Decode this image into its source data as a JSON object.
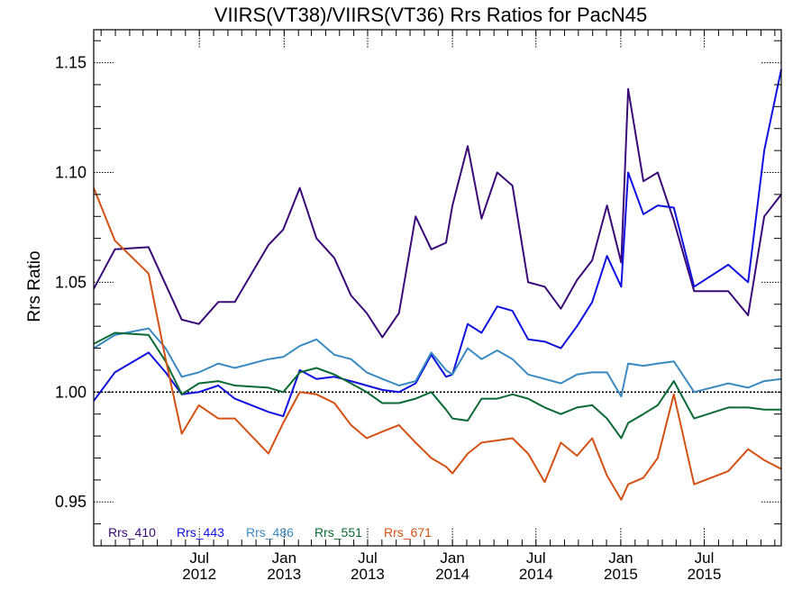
{
  "chart_data": {
    "type": "line",
    "title": "VIIRS(VT38)/VIIRS(VT36)  Rrs Ratios for PacN45",
    "ylabel": "Rrs Ratio",
    "xlabel": "",
    "ylim": [
      0.93,
      1.165
    ],
    "xlim": [
      "2011-11-15",
      "2015-12-15"
    ],
    "y_ticks": [
      0.95,
      1.0,
      1.05,
      1.1,
      1.15
    ],
    "y_tick_labels": [
      "0.95",
      "1.00",
      "1.05",
      "1.10",
      "1.15"
    ],
    "x_ticks": [
      {
        "date": "2012-07-01",
        "label_top": "Jul",
        "label_bottom": "2012"
      },
      {
        "date": "2013-01-01",
        "label_top": "Jan",
        "label_bottom": "2013"
      },
      {
        "date": "2013-07-01",
        "label_top": "Jul",
        "label_bottom": "2013"
      },
      {
        "date": "2014-01-01",
        "label_top": "Jan",
        "label_bottom": "2014"
      },
      {
        "date": "2014-07-01",
        "label_top": "Jul",
        "label_bottom": "2014"
      },
      {
        "date": "2015-01-01",
        "label_top": "Jan",
        "label_bottom": "2015"
      },
      {
        "date": "2015-07-01",
        "label_top": "Jul",
        "label_bottom": "2015"
      }
    ],
    "reference_line": 1.0,
    "legend_position": "bottom-left",
    "series": [
      {
        "name": "Rrs_410",
        "color": "#3a0a78",
        "points": [
          [
            "2011-11-15",
            1.047
          ],
          [
            "2011-12-31",
            1.065
          ],
          [
            "2012-03-13",
            1.066
          ],
          [
            "2012-05-24",
            1.033
          ],
          [
            "2012-06-30",
            1.031
          ],
          [
            "2012-08-11",
            1.041
          ],
          [
            "2012-09-16",
            1.041
          ],
          [
            "2012-11-28",
            1.067
          ],
          [
            "2012-12-30",
            1.074
          ],
          [
            "2013-02-04",
            1.093
          ],
          [
            "2013-03-12",
            1.07
          ],
          [
            "2013-04-20",
            1.061
          ],
          [
            "2013-05-26",
            1.044
          ],
          [
            "2013-06-29",
            1.036
          ],
          [
            "2013-08-02",
            1.025
          ],
          [
            "2013-09-07",
            1.036
          ],
          [
            "2013-10-13",
            1.08
          ],
          [
            "2013-11-16",
            1.065
          ],
          [
            "2013-12-18",
            1.068
          ],
          [
            "2014-01-01",
            1.085
          ],
          [
            "2014-02-03",
            1.112
          ],
          [
            "2014-03-05",
            1.079
          ],
          [
            "2014-04-08",
            1.1
          ],
          [
            "2014-05-11",
            1.094
          ],
          [
            "2014-06-14",
            1.05
          ],
          [
            "2014-07-20",
            1.048
          ],
          [
            "2014-08-24",
            1.038
          ],
          [
            "2014-09-28",
            1.051
          ],
          [
            "2014-10-31",
            1.06
          ],
          [
            "2014-12-02",
            1.085
          ],
          [
            "2015-01-02",
            1.059
          ],
          [
            "2015-01-17",
            1.138
          ],
          [
            "2015-02-19",
            1.096
          ],
          [
            "2015-03-22",
            1.1
          ],
          [
            "2015-04-26",
            1.078
          ],
          [
            "2015-06-09",
            1.046
          ],
          [
            "2015-08-22",
            1.046
          ],
          [
            "2015-10-04",
            1.035
          ],
          [
            "2015-11-08",
            1.08
          ],
          [
            "2015-12-15",
            1.09
          ]
        ]
      },
      {
        "name": "Rrs_443",
        "color": "#1010e0",
        "points": [
          [
            "2011-11-15",
            0.996
          ],
          [
            "2011-12-31",
            1.009
          ],
          [
            "2012-03-13",
            1.018
          ],
          [
            "2012-04-19",
            1.009
          ],
          [
            "2012-05-24",
            0.999
          ],
          [
            "2012-06-30",
            1.0
          ],
          [
            "2012-08-11",
            1.003
          ],
          [
            "2012-09-16",
            0.997
          ],
          [
            "2012-11-28",
            0.991
          ],
          [
            "2012-12-30",
            0.989
          ],
          [
            "2013-02-04",
            1.01
          ],
          [
            "2013-03-12",
            1.006
          ],
          [
            "2013-04-20",
            1.007
          ],
          [
            "2013-05-26",
            1.005
          ],
          [
            "2013-06-29",
            1.003
          ],
          [
            "2013-08-02",
            1.001
          ],
          [
            "2013-09-07",
            1.0
          ],
          [
            "2013-10-13",
            1.004
          ],
          [
            "2013-11-16",
            1.017
          ],
          [
            "2013-12-18",
            1.007
          ],
          [
            "2014-01-01",
            1.008
          ],
          [
            "2014-02-03",
            1.031
          ],
          [
            "2014-03-05",
            1.027
          ],
          [
            "2014-04-08",
            1.039
          ],
          [
            "2014-05-11",
            1.037
          ],
          [
            "2014-06-14",
            1.024
          ],
          [
            "2014-07-20",
            1.023
          ],
          [
            "2014-08-24",
            1.02
          ],
          [
            "2014-09-28",
            1.03
          ],
          [
            "2014-10-31",
            1.041
          ],
          [
            "2014-12-02",
            1.062
          ],
          [
            "2015-01-02",
            1.048
          ],
          [
            "2015-01-17",
            1.1
          ],
          [
            "2015-02-19",
            1.081
          ],
          [
            "2015-03-22",
            1.085
          ],
          [
            "2015-04-26",
            1.084
          ],
          [
            "2015-06-09",
            1.048
          ],
          [
            "2015-08-22",
            1.058
          ],
          [
            "2015-10-04",
            1.05
          ],
          [
            "2015-11-08",
            1.11
          ],
          [
            "2015-12-15",
            1.147
          ]
        ]
      },
      {
        "name": "Rrs_486",
        "color": "#3a8ac2",
        "points": [
          [
            "2011-11-15",
            1.02
          ],
          [
            "2011-12-31",
            1.026
          ],
          [
            "2012-03-13",
            1.029
          ],
          [
            "2012-04-19",
            1.02
          ],
          [
            "2012-05-24",
            1.007
          ],
          [
            "2012-06-30",
            1.009
          ],
          [
            "2012-08-11",
            1.013
          ],
          [
            "2012-09-16",
            1.011
          ],
          [
            "2012-11-28",
            1.015
          ],
          [
            "2012-12-30",
            1.016
          ],
          [
            "2013-02-04",
            1.021
          ],
          [
            "2013-03-12",
            1.024
          ],
          [
            "2013-04-20",
            1.017
          ],
          [
            "2013-05-26",
            1.015
          ],
          [
            "2013-06-29",
            1.009
          ],
          [
            "2013-08-02",
            1.006
          ],
          [
            "2013-09-07",
            1.003
          ],
          [
            "2013-10-13",
            1.005
          ],
          [
            "2013-11-16",
            1.018
          ],
          [
            "2013-12-18",
            1.01
          ],
          [
            "2014-01-01",
            1.008
          ],
          [
            "2014-02-03",
            1.02
          ],
          [
            "2014-03-05",
            1.015
          ],
          [
            "2014-04-08",
            1.019
          ],
          [
            "2014-05-11",
            1.015
          ],
          [
            "2014-06-14",
            1.008
          ],
          [
            "2014-07-20",
            1.006
          ],
          [
            "2014-08-24",
            1.004
          ],
          [
            "2014-09-28",
            1.008
          ],
          [
            "2014-10-31",
            1.009
          ],
          [
            "2014-12-02",
            1.009
          ],
          [
            "2015-01-02",
            0.998
          ],
          [
            "2015-01-17",
            1.013
          ],
          [
            "2015-02-19",
            1.012
          ],
          [
            "2015-03-22",
            1.013
          ],
          [
            "2015-04-26",
            1.014
          ],
          [
            "2015-06-09",
            1.0
          ],
          [
            "2015-08-22",
            1.004
          ],
          [
            "2015-10-04",
            1.002
          ],
          [
            "2015-11-08",
            1.005
          ],
          [
            "2015-12-15",
            1.006
          ]
        ]
      },
      {
        "name": "Rrs_551",
        "color": "#0b6a34",
        "points": [
          [
            "2011-11-15",
            1.022
          ],
          [
            "2011-12-31",
            1.027
          ],
          [
            "2012-03-13",
            1.026
          ],
          [
            "2012-04-19",
            1.014
          ],
          [
            "2012-05-24",
            0.999
          ],
          [
            "2012-06-30",
            1.004
          ],
          [
            "2012-08-11",
            1.005
          ],
          [
            "2012-09-16",
            1.003
          ],
          [
            "2012-11-28",
            1.002
          ],
          [
            "2012-12-30",
            1.0
          ],
          [
            "2013-02-04",
            1.009
          ],
          [
            "2013-03-12",
            1.011
          ],
          [
            "2013-04-20",
            1.008
          ],
          [
            "2013-05-26",
            1.004
          ],
          [
            "2013-06-29",
            1.0
          ],
          [
            "2013-08-02",
            0.995
          ],
          [
            "2013-09-07",
            0.995
          ],
          [
            "2013-10-13",
            0.997
          ],
          [
            "2013-11-16",
            1.0
          ],
          [
            "2013-12-18",
            0.992
          ],
          [
            "2014-01-01",
            0.988
          ],
          [
            "2014-02-03",
            0.987
          ],
          [
            "2014-03-05",
            0.997
          ],
          [
            "2014-04-08",
            0.997
          ],
          [
            "2014-05-11",
            0.999
          ],
          [
            "2014-06-14",
            0.997
          ],
          [
            "2014-07-20",
            0.993
          ],
          [
            "2014-08-24",
            0.99
          ],
          [
            "2014-09-28",
            0.993
          ],
          [
            "2014-10-31",
            0.994
          ],
          [
            "2014-12-02",
            0.988
          ],
          [
            "2015-01-02",
            0.979
          ],
          [
            "2015-01-17",
            0.986
          ],
          [
            "2015-02-19",
            0.99
          ],
          [
            "2015-03-22",
            0.994
          ],
          [
            "2015-04-26",
            1.005
          ],
          [
            "2015-06-09",
            0.988
          ],
          [
            "2015-08-22",
            0.993
          ],
          [
            "2015-10-04",
            0.993
          ],
          [
            "2015-11-08",
            0.992
          ],
          [
            "2015-12-15",
            0.992
          ]
        ]
      },
      {
        "name": "Rrs_671",
        "color": "#d45013",
        "points": [
          [
            "2011-11-15",
            1.093
          ],
          [
            "2011-12-31",
            1.069
          ],
          [
            "2012-03-13",
            1.054
          ],
          [
            "2012-04-19",
            1.015
          ],
          [
            "2012-05-24",
            0.981
          ],
          [
            "2012-06-30",
            0.994
          ],
          [
            "2012-08-11",
            0.988
          ],
          [
            "2012-09-16",
            0.988
          ],
          [
            "2012-11-28",
            0.972
          ],
          [
            "2012-12-30",
            0.986
          ],
          [
            "2013-02-04",
            1.0
          ],
          [
            "2013-03-12",
            0.999
          ],
          [
            "2013-04-20",
            0.995
          ],
          [
            "2013-05-26",
            0.985
          ],
          [
            "2013-06-29",
            0.979
          ],
          [
            "2013-08-02",
            0.982
          ],
          [
            "2013-09-07",
            0.985
          ],
          [
            "2013-10-13",
            0.977
          ],
          [
            "2013-11-16",
            0.97
          ],
          [
            "2013-12-18",
            0.966
          ],
          [
            "2014-01-01",
            0.963
          ],
          [
            "2014-02-03",
            0.972
          ],
          [
            "2014-03-05",
            0.977
          ],
          [
            "2014-04-08",
            0.978
          ],
          [
            "2014-05-11",
            0.979
          ],
          [
            "2014-06-14",
            0.972
          ],
          [
            "2014-07-20",
            0.959
          ],
          [
            "2014-08-24",
            0.977
          ],
          [
            "2014-09-28",
            0.971
          ],
          [
            "2014-10-31",
            0.979
          ],
          [
            "2014-12-02",
            0.962
          ],
          [
            "2015-01-02",
            0.951
          ],
          [
            "2015-01-17",
            0.958
          ],
          [
            "2015-02-19",
            0.961
          ],
          [
            "2015-03-22",
            0.97
          ],
          [
            "2015-04-26",
            0.999
          ],
          [
            "2015-06-09",
            0.958
          ],
          [
            "2015-08-22",
            0.964
          ],
          [
            "2015-10-04",
            0.974
          ],
          [
            "2015-11-08",
            0.969
          ],
          [
            "2015-12-15",
            0.965
          ]
        ]
      }
    ]
  }
}
